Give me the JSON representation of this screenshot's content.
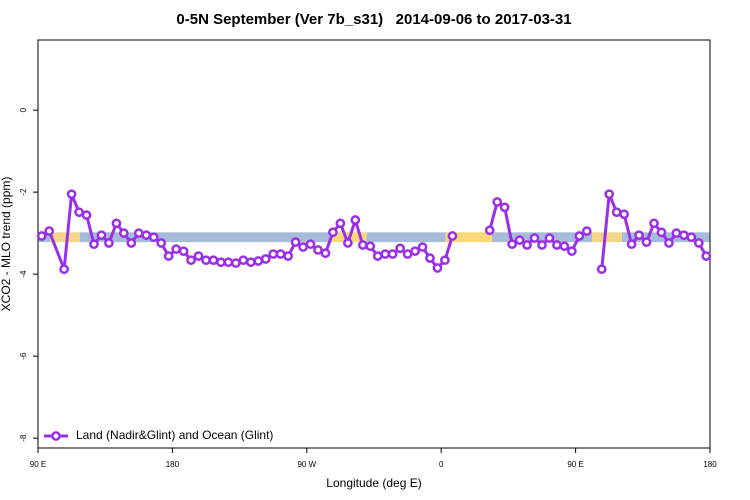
{
  "chart_data": {
    "type": "line",
    "title": "0-5N September (Ver 7b_s31)   2014-09-06 to 2017-03-31",
    "x_label": "Longitude (deg E)",
    "y_label": "XCO2 - MLO trend (ppm)",
    "xlim": [
      90,
      540
    ],
    "xticks": [
      {
        "value": 90,
        "label": "90 E"
      },
      180,
      {
        "value": 270,
        "label": "90 W"
      },
      {
        "value": 360,
        "label": "0"
      },
      {
        "value": 450,
        "label": "90 E"
      },
      {
        "value": 540,
        "label": "180"
      }
    ],
    "ylim": [
      -8.24,
      1.71
    ],
    "yticks": [
      0,
      -2,
      -4,
      -6,
      -8
    ],
    "legend": "bottom-left",
    "band": {
      "y": [
        -2.98,
        -3.22
      ],
      "segments": [
        {
          "x": [
            90,
            98
          ],
          "color": "#a7bcd9"
        },
        {
          "x": [
            98,
            118
          ],
          "color": "#f5d58a"
        },
        {
          "x": [
            118,
            286
          ],
          "color": "#a7bcd9"
        },
        {
          "x": [
            286,
            310
          ],
          "color": "#fdd877"
        },
        {
          "x": [
            310,
            363
          ],
          "color": "#a7bcd9"
        },
        {
          "x": [
            363,
            394
          ],
          "color": "#fdd877"
        },
        {
          "x": [
            394,
            461
          ],
          "color": "#a7bcd9"
        },
        {
          "x": [
            461,
            481
          ],
          "color": "#f5d58a"
        },
        {
          "x": [
            481,
            540
          ],
          "color": "#a7bcd9"
        }
      ]
    },
    "x": [
      92.5,
      97.5,
      107.5,
      112.5,
      117.5,
      122.5,
      127.5,
      132.5,
      137.5,
      142.5,
      147.5,
      152.5,
      157.5,
      162.5,
      167.5,
      172.5,
      177.5,
      182.5,
      187.5,
      192.5,
      197.5,
      202.5,
      207.5,
      212.5,
      217.5,
      222.5,
      227.5,
      232.5,
      237.5,
      242.5,
      247.5,
      252.5,
      257.5,
      262.5,
      267.5,
      272.5,
      277.5,
      282.5,
      287.5,
      292.5,
      297.5,
      302.5,
      307.5,
      312.5,
      317.5,
      322.5,
      327.5,
      332.5,
      337.5,
      342.5,
      347.5,
      352.5,
      357.5,
      362.5,
      367.5,
      372.5,
      392.5,
      397.5,
      402.5,
      407.5,
      412.5,
      417.5,
      422.5,
      427.5,
      432.5,
      437.5,
      442.5,
      447.5,
      452.5,
      457.5,
      462.5,
      467.5,
      472.5,
      477.5,
      482.5,
      487.5,
      492.5,
      497.5,
      502.5,
      507.5,
      512.5,
      517.5,
      522.5,
      527.5,
      532.5,
      537.5
    ],
    "series": [
      {
        "name": "Land (Nadir&Glint) and Ocean (Glint)",
        "color": "#9a2fe8",
        "values": [
          -3.07,
          -2.95,
          -3.88,
          -2.05,
          -2.49,
          -2.56,
          -3.27,
          -3.05,
          -3.24,
          -2.76,
          -3.0,
          -3.24,
          -3.0,
          -3.05,
          -3.1,
          -3.24,
          -3.56,
          -3.39,
          -3.44,
          -3.66,
          -3.56,
          -3.66,
          -3.66,
          -3.71,
          -3.71,
          -3.73,
          -3.66,
          -3.71,
          -3.68,
          -3.63,
          -3.51,
          -3.51,
          -3.56,
          -3.22,
          -3.34,
          -3.27,
          -3.41,
          -3.49,
          -2.98,
          -2.76,
          -3.24,
          -2.68,
          -3.29,
          -3.32,
          -3.56,
          -3.51,
          -3.51,
          -3.37,
          -3.51,
          -3.44,
          -3.34,
          -3.61,
          -3.85,
          -3.66,
          -3.07,
          null,
          -2.93,
          -2.24,
          -2.37,
          -3.27,
          -3.17,
          -3.29,
          -3.12,
          -3.29,
          -3.12,
          -3.29,
          -3.32,
          -3.44,
          -3.07,
          -2.95,
          null,
          -3.88,
          -2.05,
          -2.49,
          -2.54,
          -3.27,
          -3.05,
          -3.22,
          -2.76,
          -2.98,
          -3.24,
          -3.0,
          -3.05,
          -3.1,
          -3.24,
          -3.56
        ]
      }
    ]
  }
}
